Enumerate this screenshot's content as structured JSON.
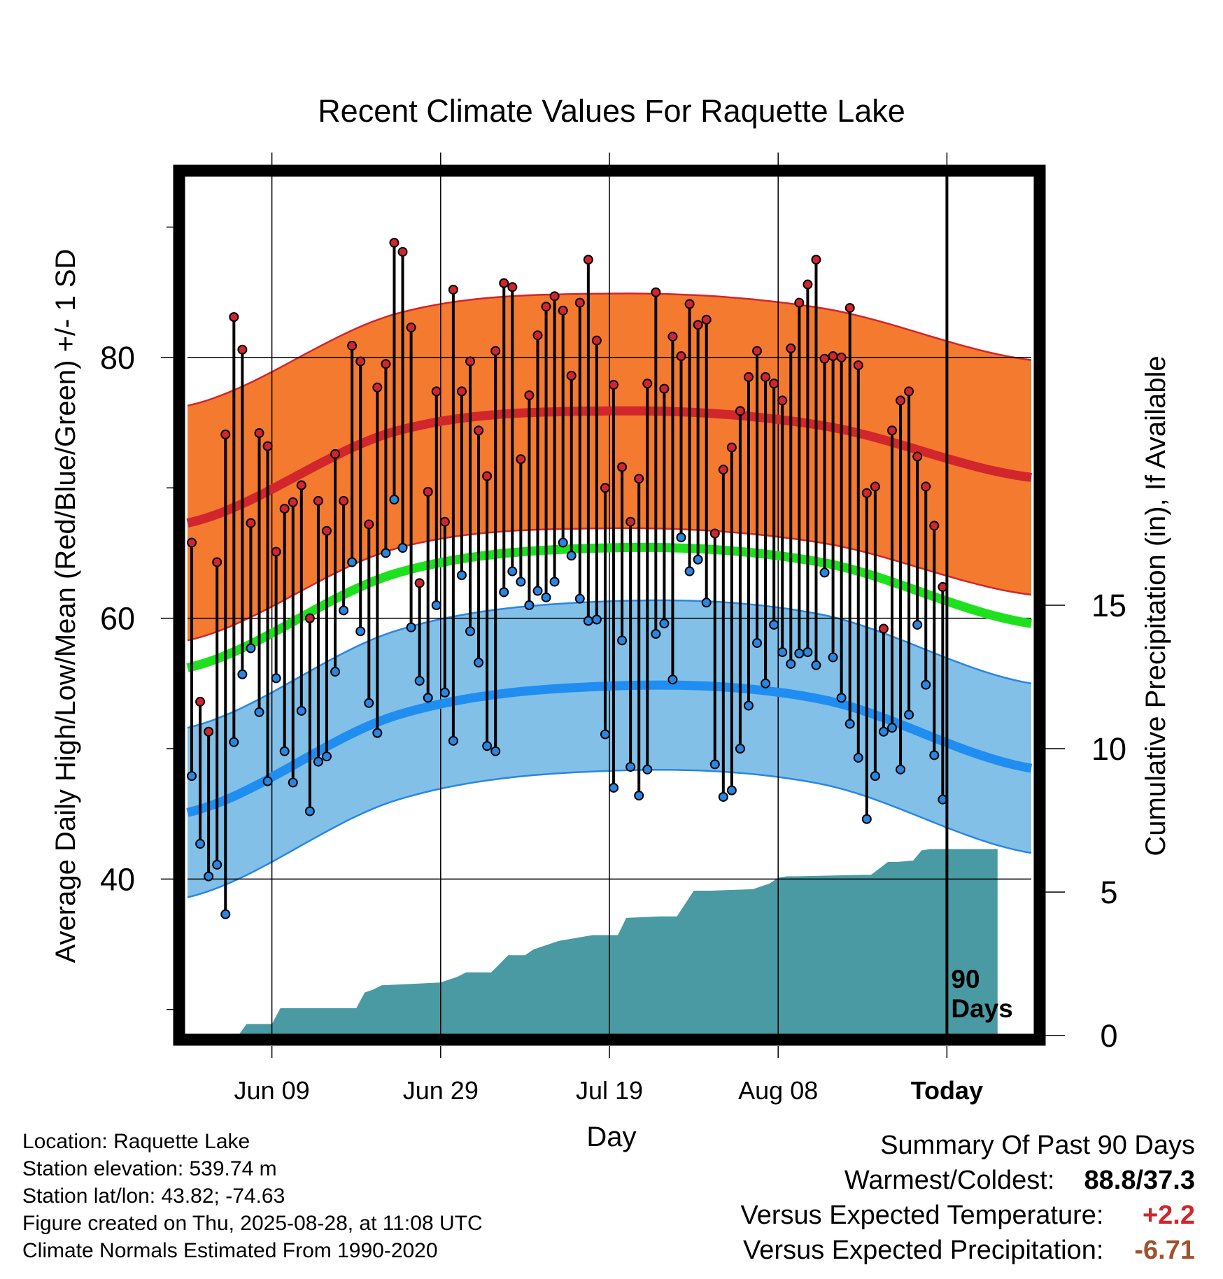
{
  "chart_data": {
    "type": "line",
    "title": "Recent Climate Values For Raquette Lake",
    "xlabel": "Day",
    "ylabel_left": "Average Daily High/Low/Mean (Red/Blue/Green) +/- 1 SD",
    "ylabel_right": "Cumulative Precipitation (in), If Available",
    "x_ticks": [
      {
        "label": "Jun 09",
        "day": 10
      },
      {
        "label": "Jun 29",
        "day": 30
      },
      {
        "label": "Jul 19",
        "day": 50
      },
      {
        "label": "Aug 08",
        "day": 70
      },
      {
        "label": "Today",
        "day": 90
      }
    ],
    "x_range": [
      0,
      100
    ],
    "ylim_left": [
      28,
      94
    ],
    "y_ticks_left": [
      40,
      60,
      80
    ],
    "ylim_right": [
      0,
      30
    ],
    "y_ticks_right": [
      0,
      5,
      10,
      15
    ],
    "today_line_label": [
      "90",
      "Days"
    ],
    "normals": {
      "high_mean": {
        "day": [
          0,
          25,
          50,
          75,
          100
        ],
        "value": [
          67.3,
          74.4,
          75.9,
          74.8,
          70.8
        ]
      },
      "high_sd": 9.0,
      "low_mean": {
        "day": [
          0,
          25,
          50,
          75,
          100
        ],
        "value": [
          45.1,
          52.6,
          54.8,
          53.8,
          48.5
        ]
      },
      "low_sd": 6.5,
      "mean": {
        "day": [
          0,
          25,
          50,
          75,
          100
        ],
        "value": [
          56.2,
          63.5,
          65.4,
          64.3,
          59.6
        ]
      }
    },
    "series": [
      {
        "name": "High",
        "color": "#d0262c",
        "values": [
          65.8,
          53.6,
          51.3,
          64.3,
          74.1,
          83.1,
          80.6,
          67.3,
          74.2,
          73.2,
          65.1,
          68.4,
          68.9,
          70.2,
          60.0,
          69.0,
          66.7,
          72.6,
          69.0,
          80.9,
          79.7,
          67.2,
          77.7,
          79.5,
          88.8,
          88.1,
          82.3,
          62.7,
          69.7,
          77.4,
          67.4,
          85.2,
          77.4,
          79.7,
          74.4,
          70.9,
          80.5,
          85.7,
          85.4,
          72.2,
          77.1,
          81.7,
          83.9,
          84.7,
          83.6,
          78.6,
          84.2,
          87.5,
          81.3,
          70.0,
          77.9,
          71.6,
          67.4,
          70.7,
          78.0,
          85.0,
          77.6,
          81.6,
          80.1,
          84.1,
          82.5,
          82.9,
          66.5,
          71.4,
          73.1,
          75.9,
          78.5,
          80.5,
          78.5,
          78.0,
          76.7,
          80.7,
          84.2,
          85.6,
          87.5,
          79.9,
          80.1,
          80.0,
          83.8,
          79.4,
          69.6,
          70.1,
          59.2,
          74.4,
          76.7,
          77.4,
          72.4,
          70.1,
          67.1,
          62.4
        ]
      },
      {
        "name": "Low",
        "color": "#2a86e0",
        "values": [
          47.9,
          42.7,
          40.2,
          41.1,
          37.3,
          50.5,
          55.7,
          57.7,
          52.8,
          47.5,
          55.4,
          49.8,
          47.4,
          52.9,
          45.2,
          49.0,
          49.4,
          55.9,
          60.6,
          64.3,
          59.0,
          53.5,
          51.2,
          65.0,
          69.1,
          65.4,
          59.3,
          55.2,
          53.9,
          61.0,
          54.3,
          50.6,
          63.3,
          59.0,
          56.6,
          50.2,
          49.8,
          62.0,
          63.6,
          62.8,
          61.0,
          62.1,
          61.6,
          62.8,
          65.8,
          64.8,
          61.5,
          59.8,
          59.9,
          51.1,
          47.0,
          58.3,
          48.6,
          46.4,
          48.4,
          58.8,
          59.6,
          55.3,
          66.2,
          63.6,
          64.5,
          61.2,
          48.8,
          46.3,
          46.8,
          50.0,
          53.3,
          58.1,
          55.0,
          59.5,
          57.4,
          56.5,
          57.3,
          57.4,
          56.4,
          63.5,
          57.0,
          53.9,
          51.9,
          49.3,
          44.6,
          47.9,
          51.3,
          51.6,
          48.4,
          52.6,
          59.5,
          54.9,
          49.5,
          46.1
        ]
      },
      {
        "name": "Precipitation",
        "color": "#4a9aa3",
        "days": [
          0,
          6,
          7,
          10,
          11,
          20,
          21,
          22,
          23,
          30,
          32,
          33,
          36,
          38,
          40,
          41,
          44,
          45,
          48,
          51,
          52,
          56,
          58,
          60,
          62,
          67,
          69,
          70,
          71,
          72,
          80,
          81,
          83,
          84,
          86,
          87,
          88,
          90,
          96
        ],
        "values": [
          0.0,
          0.0,
          0.4,
          0.4,
          0.95,
          0.95,
          1.5,
          1.6,
          1.75,
          1.85,
          2.05,
          2.2,
          2.2,
          2.8,
          2.8,
          3.0,
          3.3,
          3.35,
          3.5,
          3.5,
          4.1,
          4.15,
          4.15,
          5.05,
          5.05,
          5.1,
          5.3,
          5.5,
          5.55,
          5.55,
          5.6,
          5.6,
          6.05,
          6.05,
          6.1,
          6.45,
          6.5,
          6.5,
          6.5
        ]
      }
    ]
  },
  "footer": {
    "location": "Location: Raquette Lake",
    "elevation": "Station elevation: 539.74 m",
    "latlon": "Station lat/lon: 43.82; -74.63",
    "created": "Figure created on Thu, 2025-08-28, at 11:08 UTC",
    "normals": "Climate Normals Estimated From 1990-2020"
  },
  "summary": {
    "heading": "Summary Of Past 90 Days",
    "warm_cold_label": "Warmest/Coldest:",
    "warm_cold_value": "88.8/37.3",
    "temp_label": "Versus Expected Temperature:",
    "temp_value": "+2.2",
    "temp_color": "#d0262c",
    "precip_label": "Versus Expected Precipitation:",
    "precip_value": "-6.71",
    "precip_color": "#a0522d"
  }
}
